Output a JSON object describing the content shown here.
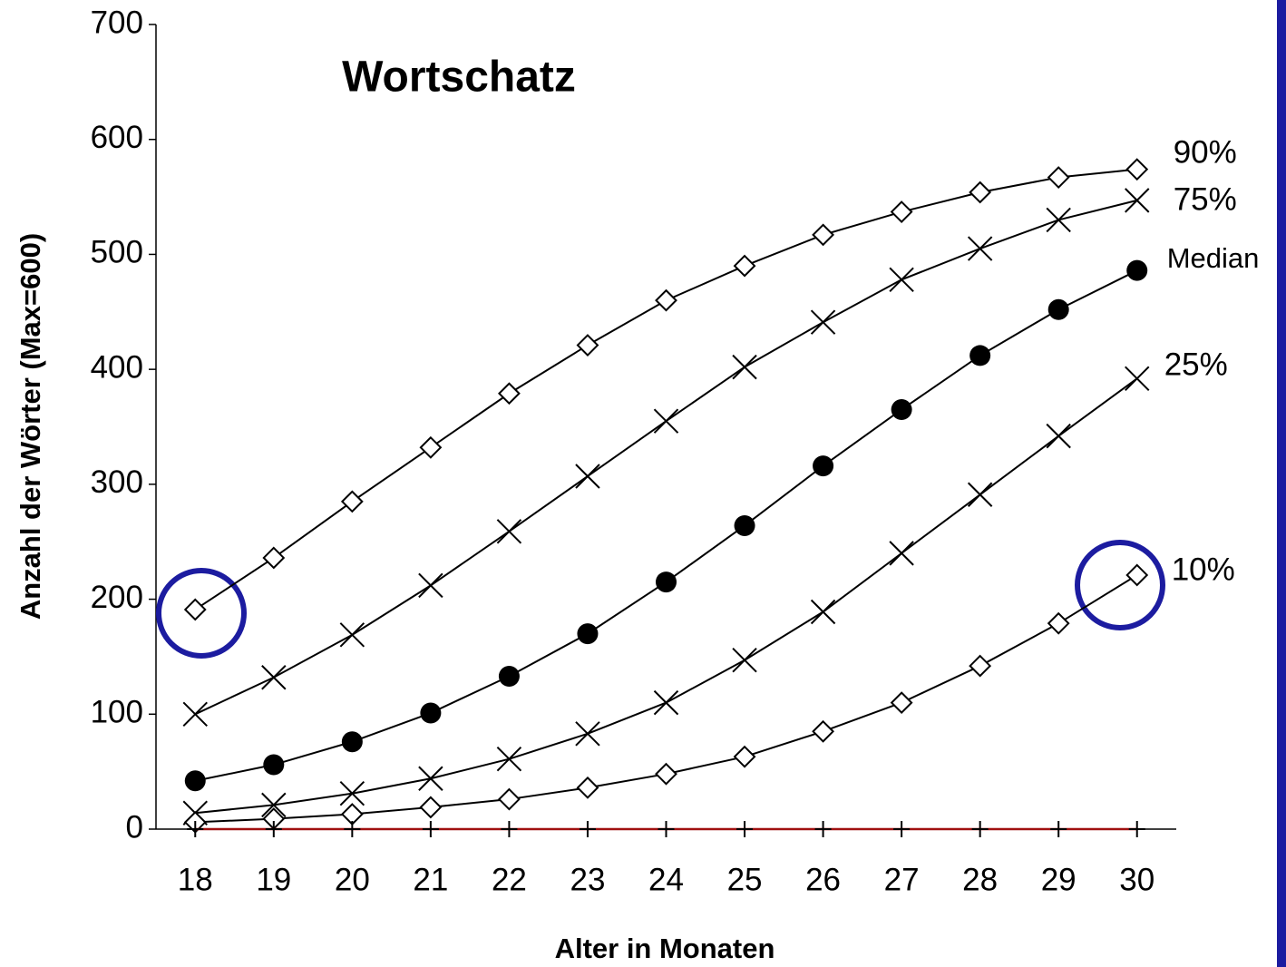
{
  "chart_data": {
    "type": "line",
    "title": "Wortschatz",
    "x_label": "Alter in Monaten",
    "y_label": "Anzahl der Wörter (Max=600)",
    "categories": [
      "18",
      "19",
      "20",
      "21",
      "22",
      "23",
      "24",
      "25",
      "26",
      "27",
      "28",
      "29",
      "30"
    ],
    "ylim": [
      0,
      700
    ],
    "yticks": [
      0,
      100,
      200,
      300,
      400,
      500,
      600,
      700
    ],
    "series": [
      {
        "name": "90%",
        "color": "#000000",
        "marker": "diamond",
        "values": [
          191,
          236,
          285,
          332,
          379,
          421,
          460,
          490,
          517,
          537,
          554,
          567,
          574
        ]
      },
      {
        "name": "75%",
        "color": "#000000",
        "marker": "x",
        "values": [
          100,
          132,
          169,
          212,
          259,
          307,
          355,
          402,
          441,
          478,
          505,
          530,
          547
        ]
      },
      {
        "name": "Median",
        "color": "#000000",
        "marker": "circle",
        "values": [
          42,
          56,
          76,
          101,
          133,
          170,
          215,
          264,
          316,
          365,
          412,
          452,
          486
        ]
      },
      {
        "name": "25%",
        "color": "#000000",
        "marker": "x",
        "values": [
          14,
          21,
          31,
          44,
          61,
          83,
          110,
          147,
          189,
          240,
          291,
          342,
          392
        ]
      },
      {
        "name": "10%",
        "color": "#000000",
        "marker": "diamond",
        "values": [
          6,
          9,
          13,
          19,
          26,
          36,
          48,
          63,
          85,
          110,
          142,
          179,
          221
        ]
      },
      {
        "color": "#a01010",
        "marker": "plus",
        "values": [
          0,
          0,
          0,
          0,
          0,
          0,
          0,
          0,
          0,
          0,
          0,
          0,
          0
        ]
      }
    ]
  }
}
